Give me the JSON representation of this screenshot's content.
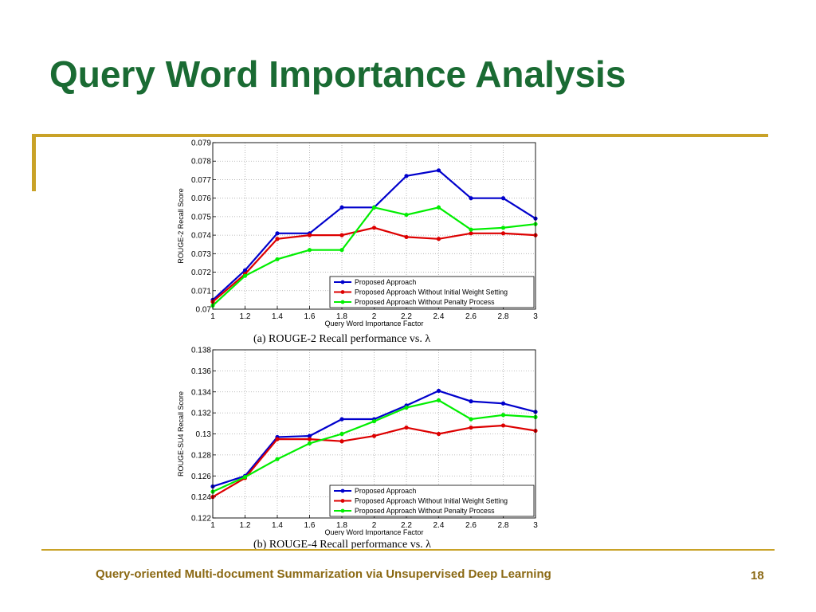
{
  "slide": {
    "title": "Query Word Importance Analysis",
    "footer": "Query-oriented Multi-document Summarization via Unsupervised Deep Learning",
    "page_number": "18",
    "accent_color": "#c9a227",
    "title_color": "#1a6b33"
  },
  "chart_data": [
    {
      "type": "line",
      "caption": "(a) ROUGE-2 Recall performance vs. λ",
      "xlabel": "Query Word Importance Factor",
      "ylabel": "ROUGE-2 Recall Score",
      "x": [
        1,
        1.2,
        1.4,
        1.6,
        1.8,
        2,
        2.2,
        2.4,
        2.6,
        2.8,
        3
      ],
      "xticks": [
        "1",
        "1.2",
        "1.4",
        "1.6",
        "1.8",
        "2",
        "2.2",
        "2.4",
        "2.6",
        "2.8",
        "3"
      ],
      "ylim": [
        0.07,
        0.079
      ],
      "yticks": [
        "0.07",
        "0.071",
        "0.072",
        "0.073",
        "0.074",
        "0.075",
        "0.076",
        "0.077",
        "0.078",
        "0.079"
      ],
      "grid": true,
      "legend_position": "bottom-right",
      "series": [
        {
          "name": "Proposed Approach",
          "color": "#0000cc",
          "values": [
            0.0705,
            0.0721,
            0.0741,
            0.0741,
            0.0755,
            0.0755,
            0.0772,
            0.0775,
            0.076,
            0.076,
            0.0749
          ]
        },
        {
          "name": "Proposed Approach Without Initial Weight Setting",
          "color": "#dd0000",
          "values": [
            0.0704,
            0.0719,
            0.0738,
            0.074,
            0.074,
            0.0744,
            0.0739,
            0.0738,
            0.0741,
            0.0741,
            0.074
          ]
        },
        {
          "name": "Proposed Approach Without Penalty Process",
          "color": "#00ee00",
          "values": [
            0.0702,
            0.0718,
            0.0727,
            0.0732,
            0.0732,
            0.0755,
            0.0751,
            0.0755,
            0.0743,
            0.0744,
            0.0746
          ]
        }
      ]
    },
    {
      "type": "line",
      "caption": "(b) ROUGE-4 Recall performance vs. λ",
      "xlabel": "Query Word Importance Factor",
      "ylabel": "ROUGE-SU4 Recall Score",
      "x": [
        1,
        1.2,
        1.4,
        1.6,
        1.8,
        2,
        2.2,
        2.4,
        2.6,
        2.8,
        3
      ],
      "xticks": [
        "1",
        "1.2",
        "1.4",
        "1.6",
        "1.8",
        "2",
        "2.2",
        "2.4",
        "2.6",
        "2.8",
        "3"
      ],
      "ylim": [
        0.122,
        0.138
      ],
      "yticks": [
        "0.122",
        "0.124",
        "0.126",
        "0.128",
        "0.13",
        "0.132",
        "0.134",
        "0.136",
        "0.138"
      ],
      "grid": true,
      "legend_position": "bottom-right",
      "series": [
        {
          "name": "Proposed Approach",
          "color": "#0000cc",
          "values": [
            0.125,
            0.126,
            0.1297,
            0.1298,
            0.1314,
            0.1314,
            0.1327,
            0.1341,
            0.1331,
            0.1329,
            0.1321
          ]
        },
        {
          "name": "Proposed Approach Without Initial Weight Setting",
          "color": "#dd0000",
          "values": [
            0.124,
            0.1258,
            0.1295,
            0.1295,
            0.1293,
            0.1298,
            0.1306,
            0.13,
            0.1306,
            0.1308,
            0.1303
          ]
        },
        {
          "name": "Proposed Approach Without Penalty Process",
          "color": "#00ee00",
          "values": [
            0.1245,
            0.1259,
            0.1276,
            0.1291,
            0.13,
            0.1312,
            0.1325,
            0.1332,
            0.1314,
            0.1318,
            0.1316
          ]
        }
      ]
    }
  ]
}
